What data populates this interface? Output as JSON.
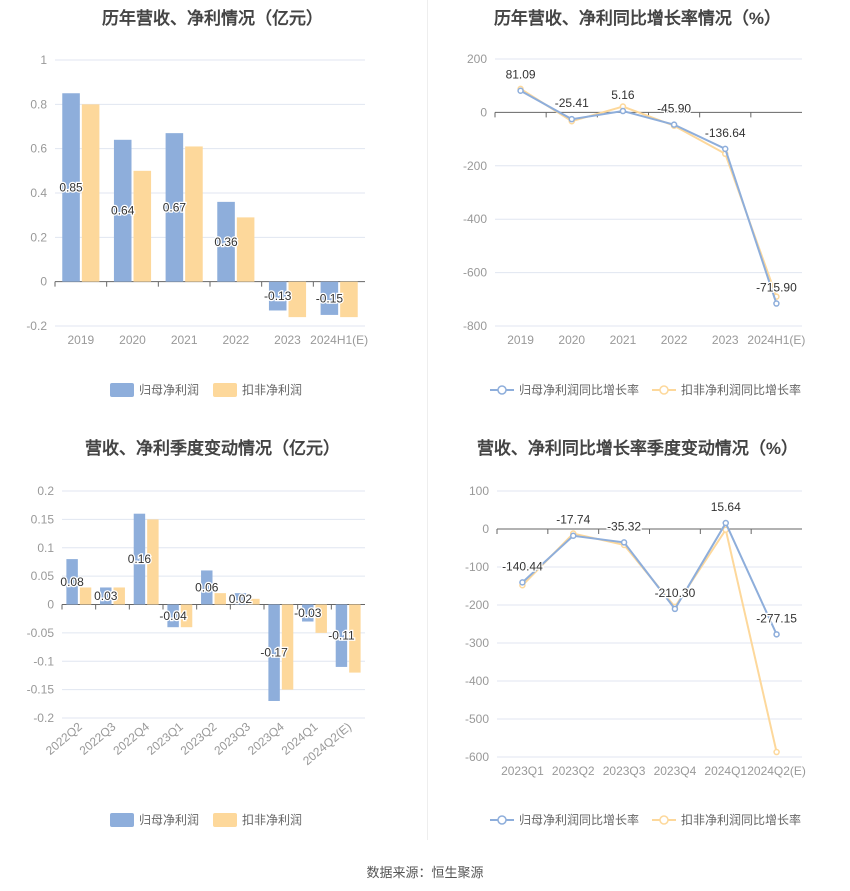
{
  "chart_data": [
    {
      "type": "bar",
      "title": "历年营收、净利情况（亿元）",
      "categories": [
        "2019",
        "2020",
        "2021",
        "2022",
        "2023",
        "2024H1(E)"
      ],
      "series": [
        {
          "name": "归母净利润",
          "values": [
            0.85,
            0.64,
            0.67,
            0.36,
            -0.13,
            -0.15
          ],
          "labels": [
            "0.85",
            "0.64",
            "0.67",
            "0.36",
            "-0.13",
            "-0.15"
          ]
        },
        {
          "name": "扣非净利润",
          "values": [
            0.8,
            0.5,
            0.61,
            0.29,
            -0.16,
            -0.16
          ]
        }
      ],
      "ylim": [
        -0.2,
        1
      ],
      "yticks": [
        "1",
        "0.8",
        "0.6",
        "0.4",
        "0.2",
        "0",
        "-0.2"
      ],
      "ytick_values": [
        1,
        0.8,
        0.6,
        0.4,
        0.2,
        0,
        -0.2
      ],
      "legend": "bottom"
    },
    {
      "type": "line",
      "title": "历年营收、净利同比增长率情况（%）",
      "categories": [
        "2019",
        "2020",
        "2021",
        "2022",
        "2023",
        "2024H1(E)"
      ],
      "series": [
        {
          "name": "归母净利润同比增长率",
          "values": [
            81.09,
            -25.41,
            5.16,
            -45.9,
            -136.64,
            -715.9
          ],
          "labels": [
            "81.09",
            "-25.41",
            "5.16",
            "-45.90",
            "-136.64",
            "-715.90"
          ]
        },
        {
          "name": "扣非净利润同比增长率",
          "values": [
            88,
            -33,
            22,
            -50,
            -155,
            -690
          ]
        }
      ],
      "ylim": [
        -800,
        200
      ],
      "yticks": [
        "200",
        "0",
        "-200",
        "-400",
        "-600",
        "-800"
      ],
      "ytick_values": [
        200,
        0,
        -200,
        -400,
        -600,
        -800
      ],
      "legend": "bottom"
    },
    {
      "type": "bar",
      "title": "营收、净利季度变动情况（亿元）",
      "categories": [
        "2022Q2",
        "2022Q3",
        "2022Q4",
        "2023Q1",
        "2023Q2",
        "2023Q3",
        "2023Q4",
        "2024Q1",
        "2024Q2(E)"
      ],
      "series": [
        {
          "name": "归母净利润",
          "values": [
            0.08,
            0.03,
            0.16,
            -0.04,
            0.06,
            0.02,
            -0.17,
            -0.03,
            -0.11
          ],
          "labels": [
            "0.08",
            "0.03",
            "0.16",
            "-0.04",
            "0.06",
            "0.02",
            "-0.17",
            "-0.03",
            "-0.11"
          ]
        },
        {
          "name": "扣非净利润",
          "values": [
            0.03,
            0.03,
            0.15,
            -0.04,
            0.02,
            0.01,
            -0.15,
            -0.05,
            -0.12
          ]
        }
      ],
      "ylim": [
        -0.2,
        0.2
      ],
      "yticks": [
        "0.2",
        "0.15",
        "0.1",
        "0.05",
        "0",
        "-0.05",
        "-0.1",
        "-0.15",
        "-0.2"
      ],
      "ytick_values": [
        0.2,
        0.15,
        0.1,
        0.05,
        0,
        -0.05,
        -0.1,
        -0.15,
        -0.2
      ],
      "legend": "bottom"
    },
    {
      "type": "line",
      "title": "营收、净利同比增长率季度变动情况（%）",
      "categories": [
        "2023Q1",
        "2023Q2",
        "2023Q3",
        "2023Q4",
        "2024Q1",
        "2024Q2(E)"
      ],
      "series": [
        {
          "name": "归母净利润同比增长率",
          "values": [
            -140.44,
            -17.74,
            -35.32,
            -210.3,
            15.64,
            -277.15
          ],
          "labels": [
            "-140.44",
            "-17.74",
            "-35.32",
            "-210.30",
            "15.64",
            "-277.15"
          ]
        },
        {
          "name": "扣非净利润同比增长率",
          "values": [
            -148,
            -12,
            -42,
            -205,
            -2,
            -587
          ]
        }
      ],
      "ylim": [
        -600,
        100
      ],
      "yticks": [
        "100",
        "0",
        "-100",
        "-200",
        "-300",
        "-400",
        "-500",
        "-600"
      ],
      "ytick_values": [
        100,
        0,
        -100,
        -200,
        -300,
        -400,
        -500,
        -600
      ],
      "legend": "bottom"
    }
  ],
  "colors": {
    "blue": "#8eaedb",
    "yellow": "#fdd89b"
  },
  "footer": "数据来源：恒生聚源"
}
